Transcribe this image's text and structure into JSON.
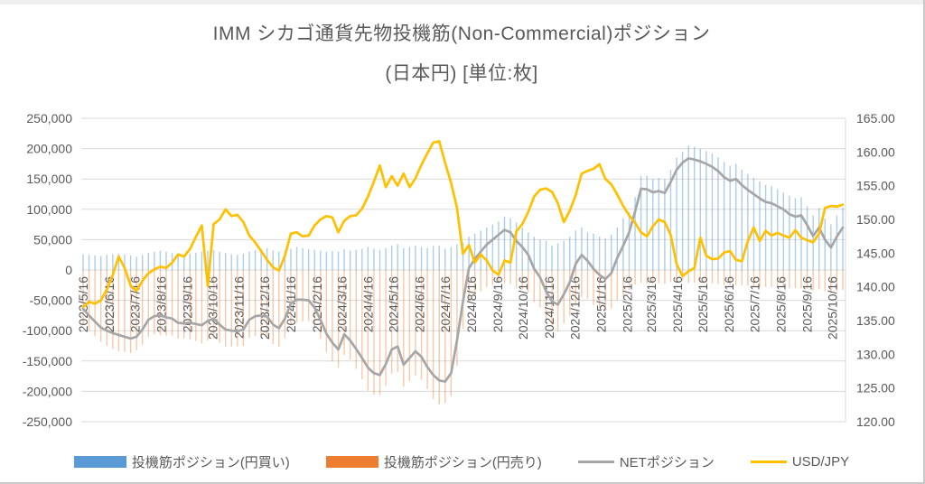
{
  "title": {
    "line1": "IMM シカゴ通貨先物投機筋(Non-Commercial)ポジション",
    "line2": "(日本円) [単位:枚]"
  },
  "colors": {
    "long_bar": "#5B9BD5",
    "short_bar": "#ED7D31",
    "net_line": "#A6A6A6",
    "usdjpy_line": "#FFC000",
    "grid": "#D9D9D9",
    "text": "#595959"
  },
  "legend": [
    {
      "label": "投機筋ポジション(円買い)",
      "type": "bar",
      "color": "#5B9BD5"
    },
    {
      "label": "投機筋ポジション(円売り)",
      "type": "bar",
      "color": "#ED7D31"
    },
    {
      "label": "NETポジション",
      "type": "line",
      "color": "#A6A6A6"
    },
    {
      "label": "USD/JPY",
      "type": "line",
      "color": "#FFC000"
    }
  ],
  "chart_data": {
    "type": "combo",
    "title": "IMM シカゴ通貨先物投機筋(Non-Commercial)ポジション(日本円) [単位:枚]",
    "grid": true,
    "left_axis": {
      "min": -250000,
      "max": 250000,
      "step": 50000,
      "tick_labels": [
        "250,000",
        "200,000",
        "150,000",
        "100,000",
        "50,000",
        "0",
        "-50,000",
        "-100,000",
        "-150,000",
        "-200,000",
        "-250,000"
      ]
    },
    "right_axis": {
      "min": 120,
      "max": 165,
      "step": 5,
      "tick_labels": [
        "165.00",
        "160.00",
        "155.00",
        "150.00",
        "145.00",
        "140.00",
        "135.00",
        "130.00",
        "125.00",
        "120.00"
      ]
    },
    "x_axis": {
      "month_labels": [
        "2023/5/16",
        "2023/6/16",
        "2023/7/16",
        "2023/8/16",
        "2023/9/16",
        "2023/10/16",
        "2023/11/16",
        "2023/12/16",
        "2024/1/16",
        "2024/2/16",
        "2024/3/16",
        "2024/4/16",
        "2024/5/16",
        "2024/6/16",
        "2024/7/16",
        "2024/8/16",
        "2024/9/16",
        "2024/10/16",
        "2024/11/16",
        "2024/12/16",
        "2025/1/16",
        "2025/2/16",
        "2025/3/16",
        "2025/4/16",
        "2025/5/16",
        "2025/6/16",
        "2025/7/16",
        "2025/8/16",
        "2025/9/16",
        "2025/10/16"
      ]
    },
    "weeks": {
      "start": "2023/5/16",
      "count": 129,
      "interval_days": 7
    },
    "unit_scale": 1000,
    "series": [
      {
        "name": "投機筋ポジション(円買い)",
        "type": "bar",
        "axis": "left",
        "values_k": [
          26,
          25,
          24,
          23,
          25,
          26,
          27,
          25,
          24,
          22,
          25,
          28,
          30,
          32,
          30,
          28,
          26,
          25,
          27,
          28,
          30,
          32,
          33,
          30,
          28,
          26,
          25,
          27,
          30,
          33,
          35,
          36,
          32,
          30,
          32,
          35,
          38,
          36,
          34,
          33,
          32,
          30,
          31,
          30,
          34,
          32,
          33,
          35,
          38,
          35,
          33,
          36,
          40,
          42,
          36,
          38,
          40,
          38,
          36,
          40,
          40,
          35,
          38,
          42,
          45,
          55,
          60,
          65,
          70,
          75,
          80,
          88,
          85,
          78,
          70,
          62,
          55,
          50,
          48,
          40,
          44,
          48,
          55,
          65,
          70,
          62,
          60,
          55,
          52,
          58,
          70,
          85,
          95,
          120,
          155,
          155,
          150,
          152,
          150,
          165,
          185,
          195,
          205,
          203,
          200,
          196,
          192,
          186,
          178,
          172,
          175,
          165,
          158,
          152,
          146,
          140,
          138,
          133,
          128,
          122,
          118,
          120,
          105,
          90,
          102,
          85,
          75,
          90,
          103
        ]
      },
      {
        "name": "投機筋ポジション(円売り)",
        "type": "bar",
        "axis": "left",
        "values_k": [
          -90,
          -100,
          -109,
          -118,
          -125,
          -130,
          -134,
          -135,
          -137,
          -132,
          -123,
          -110,
          -106,
          -107,
          -108,
          -108,
          -113,
          -113,
          -114,
          -117,
          -121,
          -116,
          -113,
          -120,
          -126,
          -126,
          -126,
          -125,
          -112,
          -109,
          -110,
          -113,
          -122,
          -126,
          -112,
          -90,
          -87,
          -85,
          -84,
          -95,
          -114,
          -135,
          -151,
          -161,
          -140,
          -148,
          -163,
          -180,
          -199,
          -205,
          -206,
          -191,
          -171,
          -168,
          -192,
          -183,
          -174,
          -181,
          -196,
          -213,
          -222,
          -219,
          -208,
          -158,
          -97,
          -52,
          -42,
          -35,
          -28,
          -25,
          -22,
          -22,
          -23,
          -30,
          -32,
          -37,
          -53,
          -62,
          -83,
          -92,
          -101,
          -88,
          -75,
          -55,
          -45,
          -47,
          -58,
          -63,
          -67,
          -63,
          -50,
          -45,
          -33,
          -24,
          -21,
          -22,
          -22,
          -22,
          -23,
          -20,
          -20,
          -18,
          -21,
          -21,
          -21,
          -21,
          -22,
          -23,
          -25,
          -25,
          -25,
          -25,
          -26,
          -27,
          -28,
          -28,
          -28,
          -28,
          -28,
          -30,
          -30,
          -30,
          -31,
          -34,
          -32,
          -35,
          -38,
          -35,
          -33
        ]
      },
      {
        "name": "NETポジション",
        "type": "line",
        "axis": "left",
        "values_k": [
          -64,
          -75,
          -85,
          -95,
          -100,
          -104,
          -107,
          -110,
          -113,
          -110,
          -98,
          -82,
          -76,
          -75,
          -78,
          -80,
          -87,
          -88,
          -87,
          -89,
          -91,
          -84,
          -80,
          -90,
          -98,
          -100,
          -101,
          -98,
          -82,
          -76,
          -75,
          -77,
          -90,
          -96,
          -80,
          -55,
          -49,
          -49,
          -50,
          -62,
          -82,
          -105,
          -120,
          -131,
          -106,
          -116,
          -130,
          -145,
          -161,
          -170,
          -173,
          -155,
          -131,
          -126,
          -156,
          -145,
          -134,
          -143,
          -160,
          -173,
          -182,
          -184,
          -170,
          -116,
          -52,
          3,
          18,
          30,
          42,
          50,
          58,
          66,
          62,
          48,
          38,
          25,
          2,
          -12,
          -35,
          -52,
          -57,
          -40,
          -20,
          10,
          25,
          15,
          2,
          -8,
          -15,
          -5,
          20,
          40,
          62,
          96,
          134,
          133,
          128,
          130,
          127,
          145,
          165,
          177,
          184,
          182,
          179,
          175,
          170,
          163,
          153,
          147,
          150,
          140,
          132,
          125,
          118,
          112,
          110,
          105,
          100,
          92,
          88,
          90,
          74,
          56,
          70,
          50,
          37,
          55,
          70
        ]
      },
      {
        "name": "USD/JPY",
        "type": "line",
        "axis": "right",
        "values": [
          137.0,
          137.8,
          137.5,
          138.0,
          139.6,
          141.8,
          144.5,
          142.8,
          140.2,
          139.4,
          140.9,
          142.0,
          142.6,
          143.0,
          142.8,
          143.6,
          144.8,
          144.5,
          145.6,
          147.4,
          149.1,
          140.1,
          149.3,
          150.0,
          151.5,
          150.5,
          150.7,
          149.6,
          147.6,
          146.6,
          145.3,
          144.0,
          142.9,
          142.4,
          144.6,
          147.9,
          148.1,
          147.5,
          147.6,
          149.1,
          150.0,
          150.5,
          150.3,
          148.1,
          149.8,
          150.5,
          150.6,
          151.6,
          153.4,
          155.6,
          158.0,
          154.8,
          156.4,
          155.0,
          156.8,
          154.8,
          156.1,
          158.1,
          159.8,
          161.4,
          161.6,
          158.4,
          155.4,
          151.7,
          144.9,
          146.2,
          143.6,
          144.8,
          143.9,
          142.4,
          141.8,
          143.9,
          143.6,
          148.2,
          149.3,
          151.1,
          153.4,
          154.4,
          154.6,
          154.1,
          152.4,
          149.6,
          151.3,
          153.6,
          156.8,
          157.2,
          157.5,
          158.2,
          156.0,
          155.2,
          153.7,
          152.0,
          150.6,
          149.5,
          148.1,
          147.5,
          149.0,
          150.0,
          149.6,
          147.7,
          143.4,
          141.6,
          142.3,
          142.8,
          147.3,
          144.6,
          144.1,
          144.2,
          145.1,
          145.3,
          144.0,
          143.8,
          146.8,
          148.8,
          146.8,
          148.3,
          147.6,
          148.0,
          147.6,
          147.3,
          148.4,
          147.3,
          146.9,
          146.6,
          147.9,
          151.7,
          152.0,
          151.9,
          152.2
        ]
      }
    ]
  }
}
